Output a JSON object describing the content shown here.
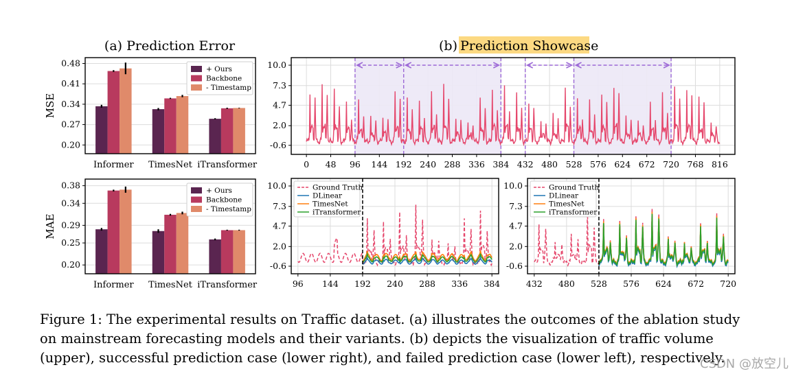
{
  "colors": {
    "ours": "#5a2550",
    "backbone": "#b83a5e",
    "timestamp": "#e08a6a",
    "traffic": "#e5466b",
    "ground_truth": "#e5466b",
    "dlinear": "#1f77b4",
    "timesnet": "#ff7f0e",
    "itransformer": "#2ca02c",
    "highlight": "#fcd982",
    "shade": "#ece8f6",
    "arrow": "#9c68d6"
  },
  "panel_a": {
    "title": "(a) Prediction Error"
  },
  "panel_b": {
    "title_prefix": "(b) ",
    "title_highlight": "Prediction Showcase"
  },
  "chart_data": [
    {
      "id": "mse",
      "type": "bar",
      "ylabel": "MSE",
      "ylim": [
        0.17,
        0.5
      ],
      "yticks": [
        "0.20",
        "0.27",
        "0.34",
        "0.41",
        "0.48"
      ],
      "categories": [
        "Informer",
        "TimesNet",
        "iTransformer"
      ],
      "legend": [
        "+ Ours",
        "Backbone",
        "- Timestamp"
      ],
      "series": [
        {
          "name": "+ Ours",
          "values": [
            0.333,
            0.323,
            0.29
          ],
          "errors": [
            0.005,
            0.004,
            0.002
          ]
        },
        {
          "name": "Backbone",
          "values": [
            0.454,
            0.36,
            0.326
          ],
          "errors": [
            0.003,
            0.002,
            0.002
          ]
        },
        {
          "name": "- Timestamp",
          "values": [
            0.463,
            0.368,
            0.327
          ],
          "errors": [
            0.02,
            0.004,
            0.001
          ]
        }
      ]
    },
    {
      "id": "mae",
      "type": "bar",
      "ylabel": "MAE",
      "ylim": [
        0.18,
        0.395
      ],
      "yticks": [
        "0.20",
        "0.25",
        "0.29",
        "0.34",
        "0.38"
      ],
      "categories": [
        "Informer",
        "TimesNet",
        "iTransformer"
      ],
      "legend": [
        "+ Ours",
        "Backbone",
        "- Timestamp"
      ],
      "series": [
        {
          "name": "+ Ours",
          "values": [
            0.281,
            0.277,
            0.258
          ],
          "errors": [
            0.003,
            0.004,
            0.002
          ]
        },
        {
          "name": "Backbone",
          "values": [
            0.369,
            0.314,
            0.279
          ],
          "errors": [
            0.002,
            0.002,
            0.001
          ]
        },
        {
          "name": "- Timestamp",
          "values": [
            0.371,
            0.318,
            0.279
          ],
          "errors": [
            0.007,
            0.003,
            0.001
          ]
        }
      ]
    },
    {
      "id": "traffic",
      "type": "line",
      "xlim": [
        -30,
        846
      ],
      "ylim": [
        -1.8,
        11.0
      ],
      "xticks": [
        0,
        48,
        96,
        144,
        192,
        240,
        288,
        336,
        384,
        432,
        480,
        528,
        576,
        624,
        672,
        720,
        768,
        816
      ],
      "yticks": [
        "-0.6",
        "2.0",
        "4.7",
        "7.3",
        "10.0"
      ],
      "shaded_x": [
        96,
        384
      ],
      "shaded_x2": [
        528,
        720
      ],
      "dashed_x": [
        96,
        192,
        384,
        432,
        528,
        720
      ],
      "arrow_spans": [
        [
          96,
          192
        ],
        [
          192,
          384
        ],
        [
          432,
          528
        ],
        [
          528,
          720
        ]
      ]
    },
    {
      "id": "fail",
      "type": "line",
      "xlim": [
        86,
        394
      ],
      "ylim": [
        -1.6,
        11.0
      ],
      "xticks": [
        96,
        144,
        192,
        240,
        288,
        336,
        384
      ],
      "yticks": [
        "-0.6",
        "2.0",
        "4.7",
        "7.3",
        "10.0"
      ],
      "split_x": 192,
      "legend": [
        "Ground Truth",
        "DLinear",
        "TimesNet",
        "iTransformer"
      ]
    },
    {
      "id": "success",
      "type": "line",
      "xlim": [
        422,
        730
      ],
      "ylim": [
        -1.6,
        11.0
      ],
      "xticks": [
        432,
        480,
        528,
        576,
        624,
        672,
        720
      ],
      "yticks": [
        "-0.6",
        "2.0",
        "4.7",
        "7.3",
        "10.0"
      ],
      "split_x": 528,
      "legend": [
        "Ground Truth",
        "DLinear",
        "TimesNet",
        "iTransformer"
      ]
    }
  ],
  "caption": {
    "line1": "Figure 1: The experimental results on Traffic dataset. (a) illustrates the outcomes of the ablation study",
    "line2": "on mainstream forecasting models and their variants. (b) depicts the visualization of traffic volume",
    "line3": "(upper), successful prediction case (lower right), and failed prediction case (lower left), respectively."
  },
  "watermark": "CSDN @放空儿"
}
